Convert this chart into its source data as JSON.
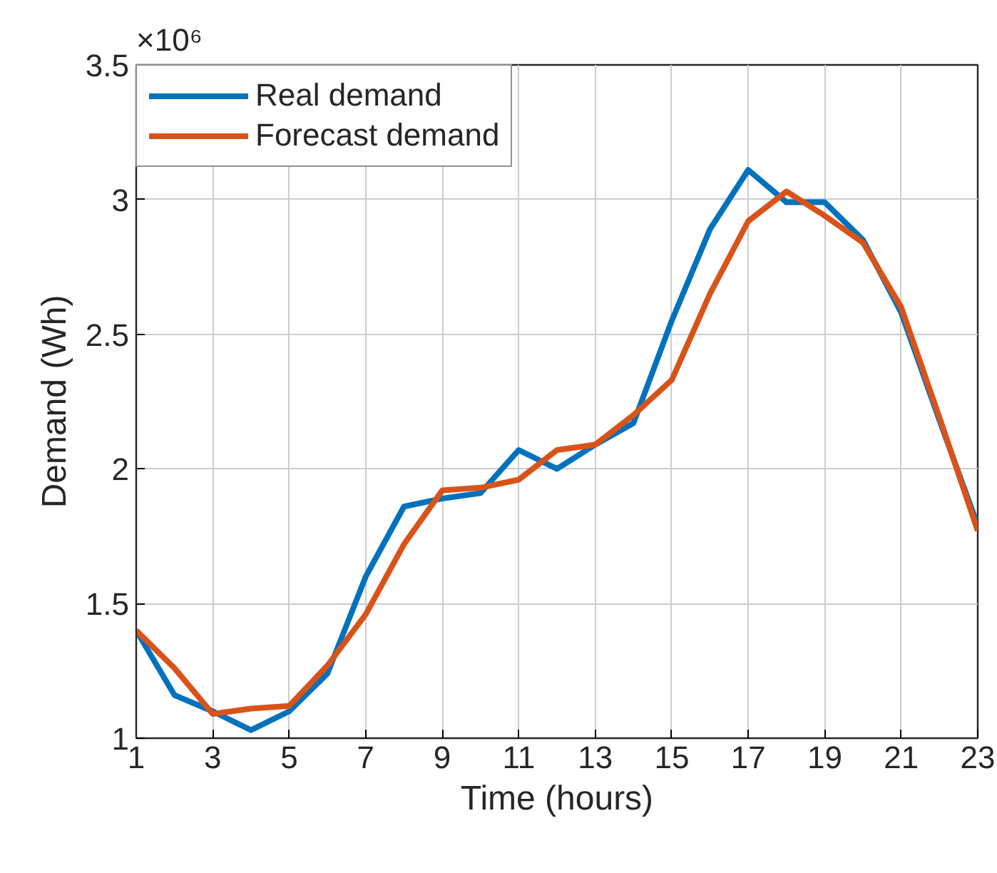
{
  "chart_data": {
    "type": "line",
    "xlabel": "Time (hours)",
    "ylabel": "Demand (Wh)",
    "annotations": [
      "×10⁶"
    ],
    "x": [
      1,
      2,
      3,
      4,
      5,
      6,
      7,
      8,
      9,
      10,
      11,
      12,
      13,
      14,
      15,
      16,
      17,
      18,
      19,
      20,
      21,
      22,
      23
    ],
    "series": [
      {
        "name": "Real demand",
        "color": "#0072bd",
        "values": [
          1.4,
          1.16,
          1.1,
          1.03,
          1.1,
          1.24,
          1.6,
          1.86,
          1.89,
          1.91,
          2.07,
          2.0,
          2.09,
          2.17,
          2.55,
          2.89,
          3.11,
          2.99,
          2.99,
          2.85,
          2.58,
          2.18,
          1.79
        ]
      },
      {
        "name": "Forecast demand",
        "color": "#d95319",
        "values": [
          1.4,
          1.26,
          1.09,
          1.11,
          1.12,
          1.27,
          1.46,
          1.72,
          1.92,
          1.93,
          1.96,
          2.07,
          2.09,
          2.2,
          2.33,
          2.65,
          2.92,
          3.03,
          2.94,
          2.84,
          2.6,
          2.19,
          1.77
        ]
      }
    ],
    "xlim": [
      1,
      23
    ],
    "xticks": [
      1,
      3,
      5,
      7,
      9,
      11,
      13,
      15,
      17,
      19,
      21,
      23
    ],
    "ylim": [
      1,
      3.5
    ],
    "yticks": [
      1,
      1.5,
      2,
      2.5,
      3,
      3.5
    ],
    "grid": true,
    "legend": "top left",
    "marker": "none",
    "line_style": "solid"
  }
}
